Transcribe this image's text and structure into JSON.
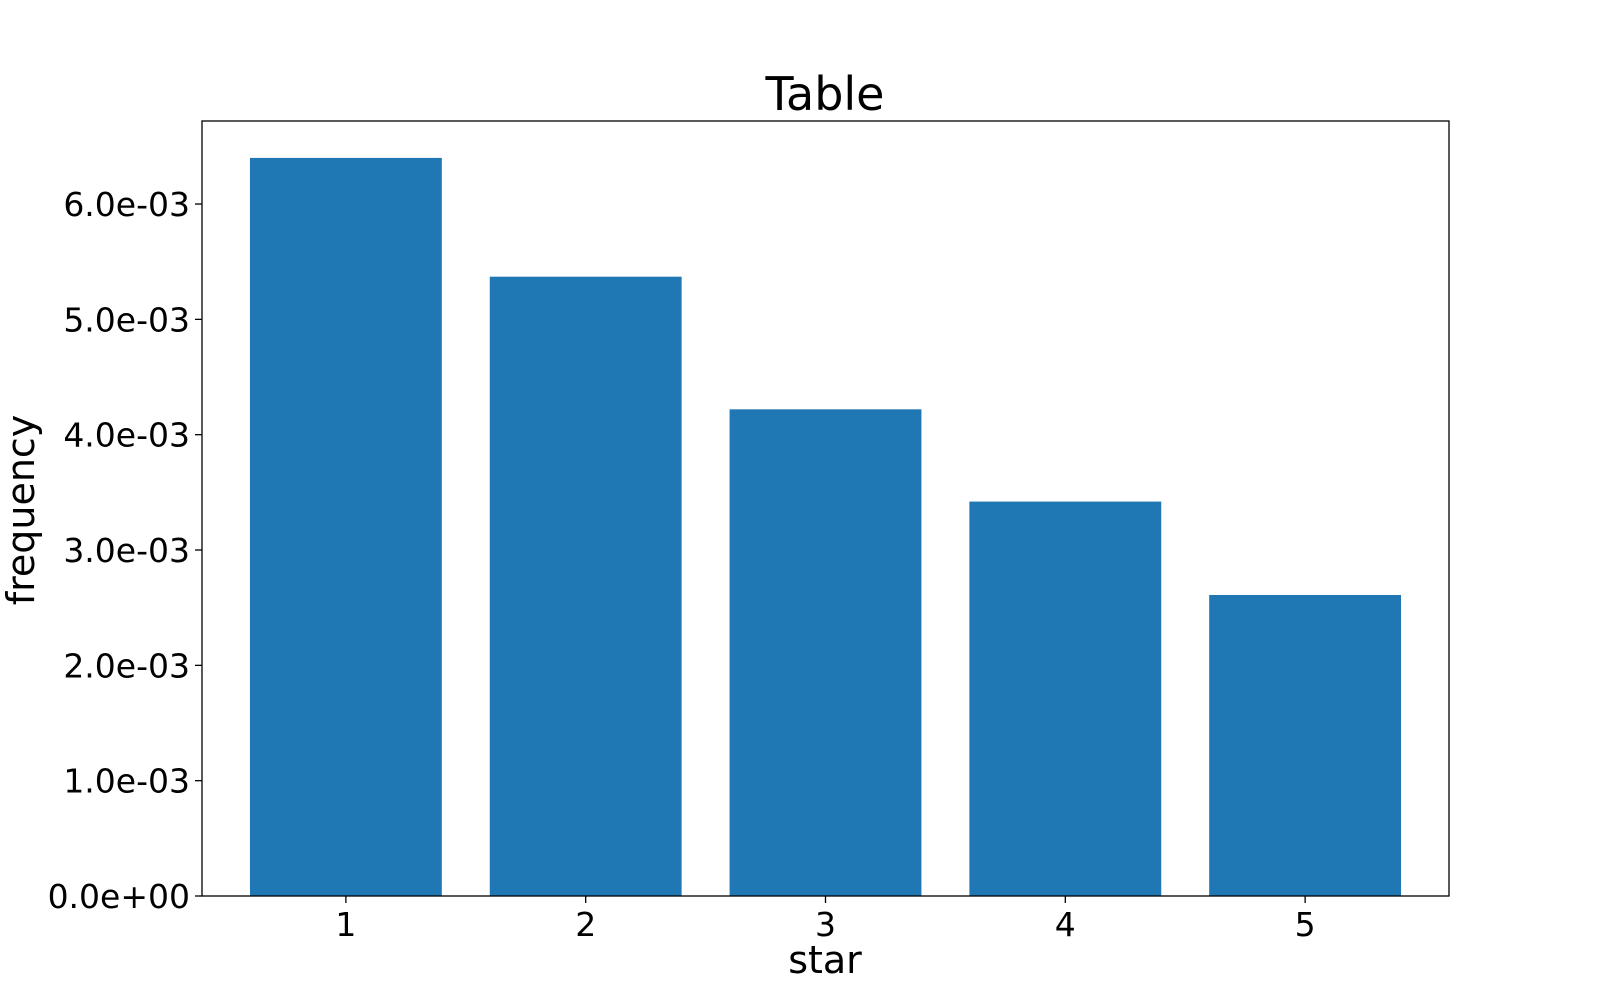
{
  "chart_data": {
    "type": "bar",
    "title": "Table",
    "xlabel": "star",
    "ylabel": "frequency",
    "categories": [
      "1",
      "2",
      "3",
      "4",
      "5"
    ],
    "values": [
      0.0064,
      0.00537,
      0.00422,
      0.00342,
      0.00261
    ],
    "ylim": [
      0,
      0.00672
    ],
    "yticks": [
      0,
      0.001,
      0.002,
      0.003,
      0.004,
      0.005,
      0.006
    ],
    "ytick_labels": [
      "0.0e+00",
      "1.0e-03",
      "2.0e-03",
      "3.0e-03",
      "4.0e-03",
      "5.0e-03",
      "6.0e-03"
    ],
    "grid": false,
    "legend": "none",
    "bar_color": "#1f77b4"
  }
}
